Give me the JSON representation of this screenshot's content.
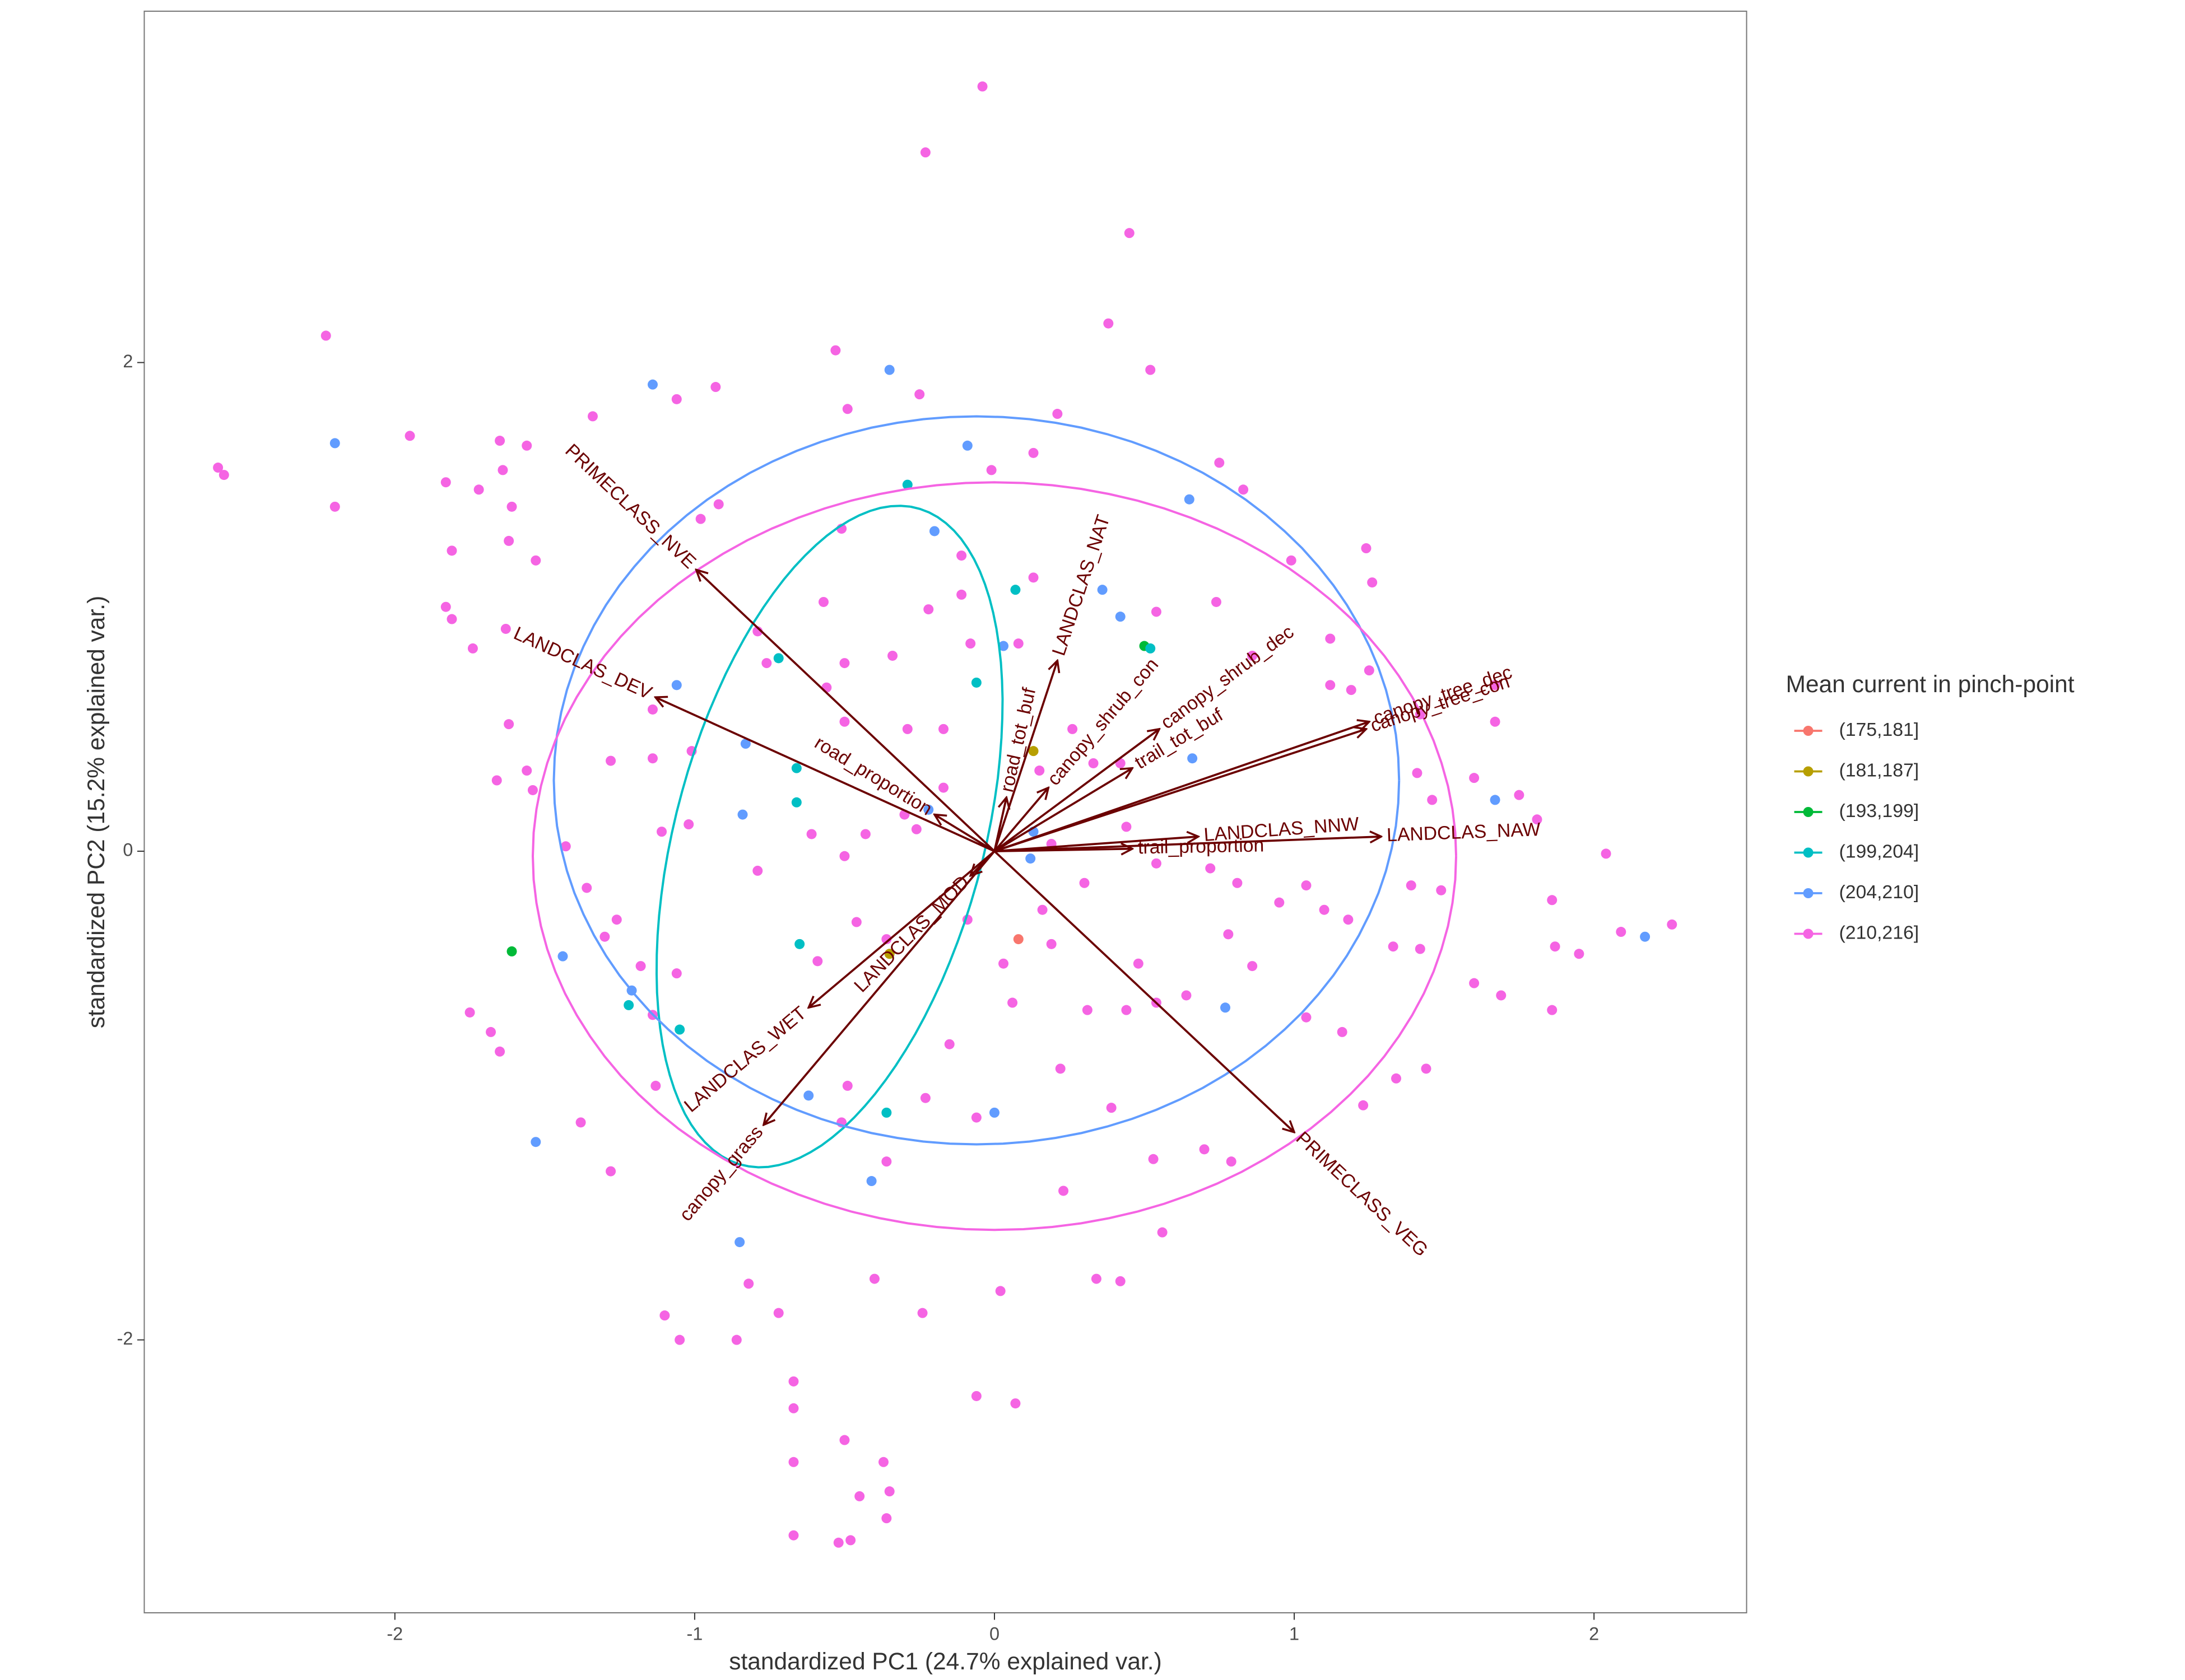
{
  "chart_data": {
    "type": "scatter",
    "xlabel": "standardized PC1 (24.7% explained var.)",
    "ylabel": "standardized PC2 (15.2% explained var.)",
    "legend_title": "Mean current in pinch-point",
    "legend_position": "right",
    "grid": false,
    "xlim": [
      -2.836,
      2.509
    ],
    "ylim": [
      -3.117,
      3.438
    ],
    "xticks": [
      -2,
      -1,
      0,
      1,
      2
    ],
    "yticks": [
      -2,
      0,
      2
    ],
    "series": [
      {
        "name": "(175,181]",
        "color": "#F8766D",
        "x": [
          0.08
        ],
        "values": [
          -0.36
        ]
      },
      {
        "name": "(181,187]",
        "color": "#B79F00",
        "x": [
          0.13,
          -0.35
        ],
        "values": [
          0.41,
          -0.42
        ]
      },
      {
        "name": "(193,199]",
        "color": "#00BA38",
        "x": [
          0.5,
          -1.61
        ],
        "values": [
          0.84,
          -0.41
        ]
      },
      {
        "name": "(199,204]",
        "color": "#00BFC4",
        "x": [
          -0.29,
          -0.72,
          -0.66,
          -0.66,
          -0.06,
          0.07,
          0.52,
          -0.65,
          -1.05,
          -1.22,
          -0.36
        ],
        "values": [
          1.5,
          0.79,
          0.34,
          0.2,
          0.69,
          1.07,
          0.83,
          -0.38,
          -0.73,
          -0.63,
          -1.07
        ],
        "ellipse": {
          "center": [
            -0.55,
            0.06
          ],
          "axis1": [
            0.27,
            1.35
          ],
          "axis2": [
            0.51,
            -0.1
          ]
        }
      },
      {
        "name": "(204,210]",
        "color": "#619CFF",
        "x": [
          -2.2,
          -1.14,
          -0.35,
          -0.2,
          -0.09,
          0.65,
          0.36,
          0.42,
          -1.06,
          -0.83,
          -0.84,
          -0.22,
          0.03,
          0.66,
          0.13,
          0.12,
          -1.44,
          -1.21,
          0.77,
          0.0,
          1.67,
          2.17,
          -1.53,
          -0.62,
          -0.41,
          -0.85
        ],
        "values": [
          1.67,
          1.91,
          1.97,
          1.31,
          1.66,
          1.44,
          1.07,
          0.96,
          0.68,
          0.44,
          0.15,
          0.17,
          0.84,
          0.38,
          0.08,
          -0.03,
          -0.43,
          -0.57,
          -0.64,
          -1.07,
          0.21,
          -0.35,
          -1.19,
          -1.0,
          -1.35,
          -1.6
        ],
        "ellipse": {
          "center": [
            -0.06,
            0.29
          ],
          "axis1": [
            1.41,
            0
          ],
          "axis2": [
            0,
            1.49
          ]
        }
      },
      {
        "name": "(210,216]",
        "color": "#F564E3",
        "x": [
          -0.04,
          -0.23,
          0.45,
          -2.23,
          0.38,
          -2.59,
          -2.57,
          -2.2,
          -1.95,
          -1.65,
          -1.56,
          -1.34,
          -0.93,
          -1.06,
          -0.53,
          -0.49,
          -0.25,
          0.21,
          0.52,
          -1.83,
          -1.72,
          -1.64,
          -1.61,
          -1.81,
          -1.53,
          -1.62,
          -1.83,
          -1.81,
          -1.63,
          -1.74,
          -1.62,
          -1.66,
          -1.56,
          -1.54,
          -1.43,
          -1.14,
          -1.28,
          -1.14,
          -1.01,
          -1.11,
          -1.02,
          -1.36,
          -1.26,
          -1.3,
          -1.18,
          -1.06,
          -1.14,
          -1.75,
          -1.68,
          -1.65,
          -1.38,
          -1.28,
          -1.13,
          -0.92,
          -0.98,
          -0.51,
          0.13,
          -0.01,
          0.75,
          0.83,
          1.24,
          0.99,
          1.26,
          -0.11,
          -0.11,
          0.13,
          -0.22,
          -0.57,
          -0.79,
          -0.76,
          -0.5,
          -0.34,
          -0.08,
          0.08,
          0.54,
          0.74,
          1.12,
          0.86,
          1.25,
          1.12,
          1.19,
          1.67,
          1.67,
          1.42,
          1.41,
          1.46,
          1.6,
          1.75,
          1.81,
          2.04,
          1.86,
          2.09,
          2.26,
          1.87,
          1.95,
          1.6,
          1.69,
          1.86,
          1.34,
          1.44,
          1.23,
          1.16,
          1.39,
          1.49,
          1.33,
          1.42,
          1.18,
          1.04,
          0.95,
          1.1,
          0.78,
          0.86,
          0.64,
          0.54,
          0.72,
          0.81,
          0.54,
          1.04,
          0.7,
          0.79,
          0.53,
          0.56,
          0.39,
          0.44,
          0.31,
          0.22,
          0.23,
          0.34,
          0.42,
          0.02,
          0.07,
          -0.06,
          -0.4,
          -0.24,
          -0.82,
          -0.72,
          -0.67,
          -0.67,
          -0.67,
          -0.67,
          -0.5,
          -0.37,
          -0.35,
          -0.45,
          -0.52,
          -0.48,
          -0.36,
          -1.1,
          -1.05,
          -0.86,
          -0.51,
          -0.49,
          -0.36,
          -0.23,
          -0.06,
          -0.15,
          0.06,
          0.03,
          -0.09,
          -0.46,
          -0.5,
          -0.43,
          -0.61,
          -0.79,
          -0.59,
          -0.36,
          -0.26,
          -0.17,
          -0.3,
          -0.5,
          -0.29,
          -0.17,
          -0.56,
          0.26,
          0.15,
          0.33,
          0.42,
          0.44,
          0.19,
          0.3,
          0.16,
          0.19,
          0.48
        ],
        "values": [
          3.13,
          2.86,
          2.53,
          2.11,
          2.16,
          1.57,
          1.54,
          1.41,
          1.7,
          1.68,
          1.66,
          1.78,
          1.9,
          1.85,
          2.05,
          1.81,
          1.87,
          1.79,
          1.97,
          1.51,
          1.48,
          1.56,
          1.41,
          1.23,
          1.19,
          1.27,
          1.0,
          0.95,
          0.91,
          0.83,
          0.52,
          0.29,
          0.33,
          0.25,
          0.02,
          0.58,
          0.37,
          0.38,
          0.41,
          0.08,
          0.11,
          -0.15,
          -0.28,
          -0.35,
          -0.47,
          -0.5,
          -0.67,
          -0.66,
          -0.74,
          -0.82,
          -1.11,
          -1.31,
          -0.96,
          1.42,
          1.36,
          1.32,
          1.63,
          1.56,
          1.59,
          1.48,
          1.24,
          1.19,
          1.1,
          1.21,
          1.05,
          1.12,
          0.99,
          1.02,
          0.9,
          0.77,
          0.77,
          0.8,
          0.85,
          0.85,
          0.98,
          1.02,
          0.87,
          0.8,
          0.74,
          0.68,
          0.66,
          0.68,
          0.53,
          0.56,
          0.32,
          0.21,
          0.3,
          0.23,
          0.13,
          -0.01,
          -0.2,
          -0.33,
          -0.3,
          -0.39,
          -0.42,
          -0.54,
          -0.59,
          -0.65,
          -0.93,
          -0.89,
          -1.04,
          -0.74,
          -0.14,
          -0.16,
          -0.39,
          -0.4,
          -0.28,
          -0.14,
          -0.21,
          -0.24,
          -0.34,
          -0.47,
          -0.59,
          -0.62,
          -0.07,
          -0.13,
          -0.05,
          -0.68,
          -1.22,
          -1.27,
          -1.26,
          -1.56,
          -1.05,
          -0.65,
          -0.65,
          -0.89,
          -1.39,
          -1.75,
          -1.76,
          -1.8,
          -2.26,
          -2.23,
          -1.75,
          -1.89,
          -1.77,
          -1.89,
          -2.17,
          -2.28,
          -2.5,
          -2.8,
          -2.41,
          -2.5,
          -2.62,
          -2.64,
          -2.83,
          -2.82,
          -2.73,
          -1.9,
          -2.0,
          -2.0,
          -1.11,
          -0.96,
          -1.27,
          -1.01,
          -1.09,
          -0.79,
          -0.62,
          -0.46,
          -0.28,
          -0.29,
          -0.02,
          0.07,
          0.07,
          -0.08,
          -0.45,
          -0.36,
          0.09,
          0.26,
          0.15,
          0.53,
          0.5,
          0.5,
          0.67,
          0.5,
          0.33,
          0.36,
          0.36,
          0.1,
          0.03,
          -0.13,
          -0.24,
          -0.38,
          -0.46
        ],
        "ellipse": {
          "center": [
            0,
            -0.02
          ],
          "axis1": [
            1.54,
            0
          ],
          "axis2": [
            0,
            1.53
          ]
        }
      }
    ],
    "loadings": {
      "color": "#6b0000",
      "names": [
        "PRIMECLASS_NVE",
        "LANDCLAS_DEV",
        "road_proportion",
        "LANDCLAS_NAT",
        "road_tot_buf",
        "canopy_shrub_con",
        "canopy_shrub_dec",
        "trail_tot_buf",
        "canopy_tree_dec",
        "canopy_tree_con",
        "LANDCLAS_NNW",
        "LANDCLAS_NAW",
        "trail_proportion",
        "PRIMECLASS_VEG",
        "LANDCLAS_WET",
        "canopy_grass",
        "LANDCLAS_MOD"
      ],
      "x": [
        -0.995,
        -1.131,
        -0.2,
        0.21,
        0.04,
        0.18,
        0.55,
        0.46,
        1.25,
        1.24,
        0.68,
        1.29,
        0.46,
        1.0,
        -0.62,
        -0.77,
        -0.08
      ],
      "y": [
        1.152,
        0.63,
        0.15,
        0.78,
        0.22,
        0.26,
        0.5,
        0.34,
        0.53,
        0.5,
        0.06,
        0.06,
        0.01,
        -1.15,
        -0.64,
        -1.12,
        -0.1
      ]
    }
  }
}
